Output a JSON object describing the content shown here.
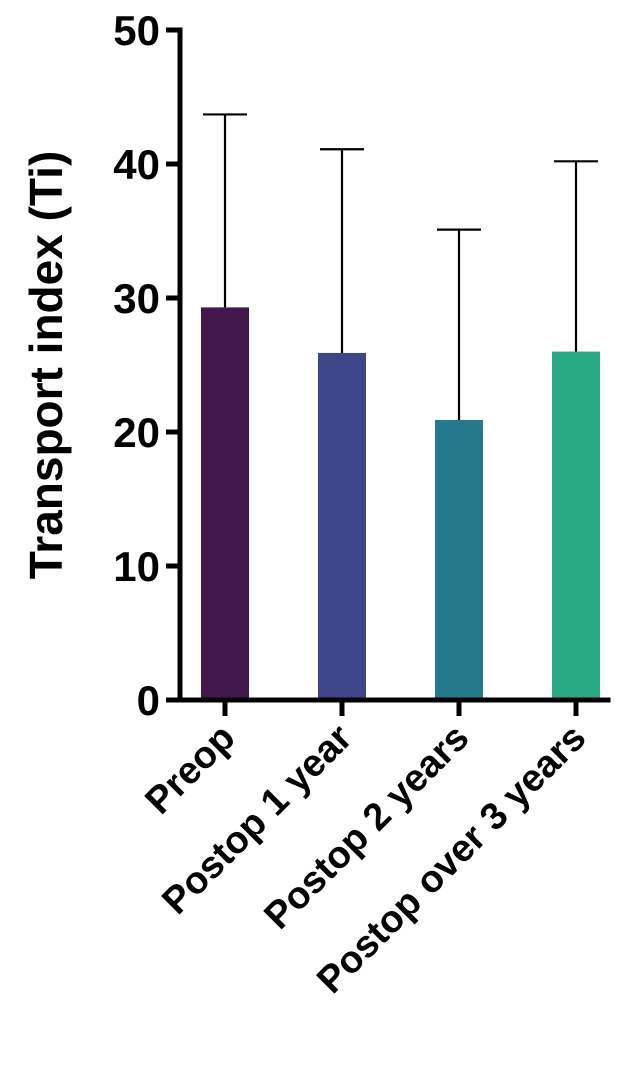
{
  "chart_data": {
    "type": "bar",
    "title": "",
    "xlabel": "",
    "ylabel": "Transport index (Ti)",
    "categories": [
      "Preop",
      "Postop 1 year",
      "Postop 2 years",
      "Postop over 3 years"
    ],
    "values": [
      29.3,
      25.9,
      20.9,
      26.0
    ],
    "error_upper": [
      43.7,
      41.1,
      35.1,
      40.2
    ],
    "colors": [
      "#43184f",
      "#3f4589",
      "#247a8a",
      "#2aaa84"
    ],
    "ylim": [
      0,
      50
    ],
    "yticks": [
      "0",
      "10",
      "20",
      "30",
      "40",
      "50"
    ],
    "grid": false,
    "legend": "none"
  }
}
